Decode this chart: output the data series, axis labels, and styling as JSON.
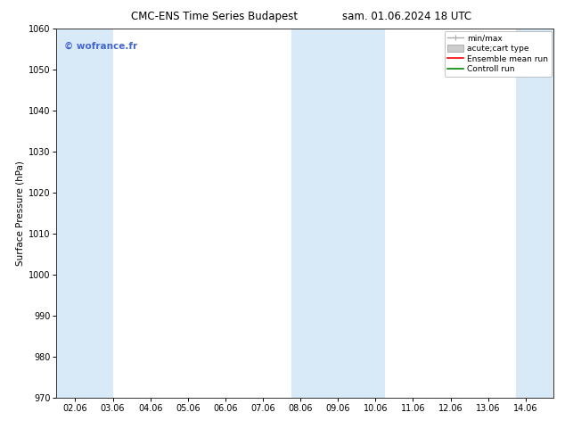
{
  "title_left": "CMC-ENS Time Series Budapest",
  "title_right": "sam. 01.06.2024 18 UTC",
  "ylabel": "Surface Pressure (hPa)",
  "ylim": [
    970,
    1060
  ],
  "yticks": [
    970,
    980,
    990,
    1000,
    1010,
    1020,
    1030,
    1040,
    1050,
    1060
  ],
  "xlim_start": 1.5,
  "xlim_end": 14.75,
  "xtick_labels": [
    "02.06",
    "03.06",
    "04.06",
    "05.06",
    "06.06",
    "07.06",
    "08.06",
    "09.06",
    "10.06",
    "11.06",
    "12.06",
    "13.06",
    "14.06"
  ],
  "xtick_positions": [
    2.0,
    3.0,
    4.0,
    5.0,
    6.0,
    7.0,
    8.0,
    9.0,
    10.0,
    11.0,
    12.0,
    13.0,
    14.0
  ],
  "shaded_bands": [
    {
      "x_start": 1.5,
      "x_end": 3.0
    },
    {
      "x_start": 7.75,
      "x_end": 9.0
    },
    {
      "x_start": 9.0,
      "x_end": 10.25
    },
    {
      "x_start": 13.75,
      "x_end": 14.75
    }
  ],
  "shade_color": "#d8eaf8",
  "watermark_text": "© wofrance.fr",
  "watermark_color": "#4466cc",
  "watermark_fontsize": 7.5,
  "legend_entries": [
    {
      "label": "min/max",
      "color": "#aaaaaa",
      "type": "errorbar"
    },
    {
      "label": "acute;cart type",
      "color": "#cccccc",
      "type": "bar"
    },
    {
      "label": "Ensemble mean run",
      "color": "#ff0000",
      "type": "line"
    },
    {
      "label": "Controll run",
      "color": "#008800",
      "type": "line"
    }
  ],
  "background_color": "#ffffff",
  "title_fontsize": 8.5,
  "ylabel_fontsize": 7.5,
  "tick_fontsize": 7.0,
  "legend_fontsize": 6.5
}
